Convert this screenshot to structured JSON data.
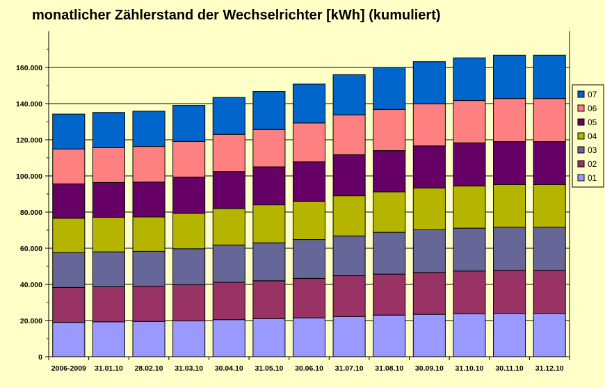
{
  "chart_data": {
    "type": "bar",
    "stacked": true,
    "title": "monatlicher Zählerstand der Wechselrichter [kWh] (kumuliert)",
    "xlabel": "",
    "ylabel": "",
    "ylim": [
      0,
      180000
    ],
    "yticks": [
      0,
      20000,
      40000,
      60000,
      80000,
      100000,
      120000,
      140000,
      160000
    ],
    "ytick_labels": [
      "0",
      "20.000",
      "40.000",
      "60.000",
      "80.000",
      "100.000",
      "120.000",
      "140.000",
      "160.000"
    ],
    "grid": true,
    "legend_position": "right",
    "categories": [
      "2006-2009",
      "31.01.10",
      "28.02.10",
      "31.03.10",
      "30.04.10",
      "31.05.10",
      "30.06.10",
      "31.07.10",
      "31.08.10",
      "30.09.10",
      "31.10.10",
      "30.11.10",
      "31.12.10"
    ],
    "series": [
      {
        "name": "01",
        "color": "#9999ff",
        "values": [
          19000,
          19300,
          19500,
          19800,
          20500,
          21000,
          21500,
          22200,
          23000,
          23400,
          23800,
          24000,
          24000
        ]
      },
      {
        "name": "02",
        "color": "#993366",
        "values": [
          19300,
          19400,
          19500,
          20000,
          20700,
          21000,
          21800,
          22600,
          22700,
          23200,
          23600,
          23800,
          23800
        ]
      },
      {
        "name": "03",
        "color": "#666699",
        "values": [
          19200,
          19300,
          19300,
          19900,
          20600,
          21000,
          21500,
          22000,
          23100,
          23600,
          23700,
          23800,
          23800
        ]
      },
      {
        "name": "04",
        "color": "#b5b500",
        "values": [
          19100,
          19100,
          19000,
          19600,
          20200,
          21000,
          21200,
          22200,
          22400,
          23100,
          23300,
          23600,
          23600
        ]
      },
      {
        "name": "05",
        "color": "#660066",
        "values": [
          19000,
          19300,
          19300,
          20000,
          20400,
          21000,
          21800,
          22700,
          22800,
          23300,
          23900,
          23800,
          23800
        ]
      },
      {
        "name": "06",
        "color": "#ff8080",
        "values": [
          19300,
          19200,
          19700,
          19800,
          20600,
          20700,
          21500,
          22100,
          22800,
          23300,
          23400,
          23800,
          23800
        ]
      },
      {
        "name": "07",
        "color": "#0066cc",
        "values": [
          19300,
          19500,
          19500,
          19900,
          20400,
          21000,
          21500,
          22200,
          23200,
          23300,
          23600,
          24000,
          24000
        ]
      }
    ]
  }
}
